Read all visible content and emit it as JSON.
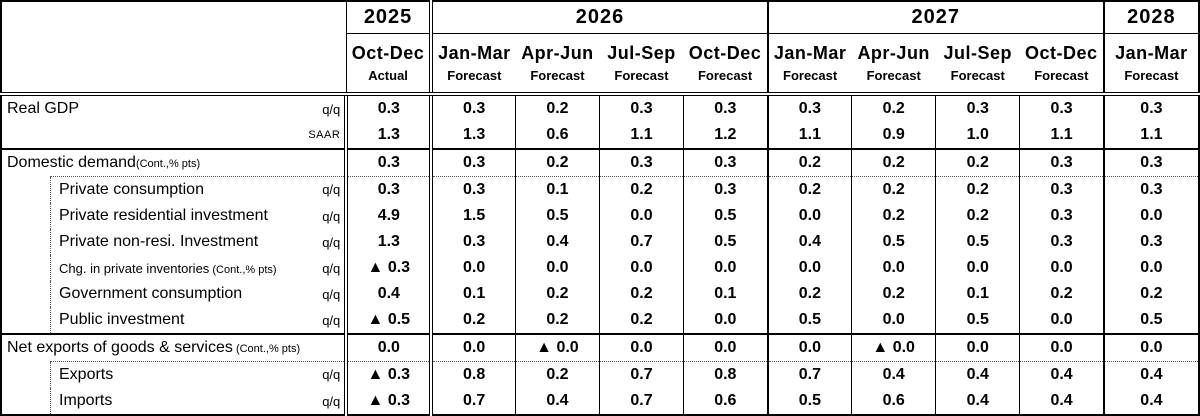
{
  "chart_data": {
    "type": "table",
    "negative_marker": "▲",
    "col_groups": [
      {
        "label": "2025",
        "span": 1
      },
      {
        "label": "2026",
        "span": 4
      },
      {
        "label": "2027",
        "span": 4
      },
      {
        "label": "2028",
        "span": 1
      }
    ],
    "columns": [
      {
        "year": "2025",
        "label": "Oct-Dec",
        "status": "Actual"
      },
      {
        "year": "2026",
        "label": "Jan-Mar",
        "status": "Forecast"
      },
      {
        "year": "2026",
        "label": "Apr-Jun",
        "status": "Forecast"
      },
      {
        "year": "2026",
        "label": "Jul-Sep",
        "status": "Forecast"
      },
      {
        "year": "2026",
        "label": "Oct-Dec",
        "status": "Forecast"
      },
      {
        "year": "2027",
        "label": "Jan-Mar",
        "status": "Forecast"
      },
      {
        "year": "2027",
        "label": "Apr-Jun",
        "status": "Forecast"
      },
      {
        "year": "2027",
        "label": "Jul-Sep",
        "status": "Forecast"
      },
      {
        "year": "2027",
        "label": "Oct-Dec",
        "status": "Forecast"
      },
      {
        "year": "2028",
        "label": "Jan-Mar",
        "status": "Forecast"
      }
    ],
    "rows": [
      {
        "label": "Real GDP",
        "suffix": "",
        "unit": "q/q",
        "style": "main",
        "divider": "",
        "values": [
          "0.3",
          "0.3",
          "0.2",
          "0.3",
          "0.3",
          "0.3",
          "0.2",
          "0.3",
          "0.3",
          "0.3"
        ]
      },
      {
        "label": "",
        "suffix": "",
        "unit": "SAAR",
        "style": "saar",
        "divider": "solid",
        "values": [
          "1.3",
          "1.3",
          "0.6",
          "1.1",
          "1.2",
          "1.1",
          "0.9",
          "1.0",
          "1.1",
          "1.1"
        ]
      },
      {
        "label": "Domestic demand",
        "suffix": "(Cont.,% pts)",
        "unit": "",
        "style": "section",
        "divider": "dotted",
        "values": [
          "0.3",
          "0.3",
          "0.2",
          "0.3",
          "0.3",
          "0.2",
          "0.2",
          "0.2",
          "0.3",
          "0.3"
        ]
      },
      {
        "label": "Private consumption",
        "suffix": "",
        "unit": "q/q",
        "style": "sub",
        "divider": "",
        "values": [
          "0.3",
          "0.3",
          "0.1",
          "0.2",
          "0.3",
          "0.2",
          "0.2",
          "0.2",
          "0.3",
          "0.3"
        ]
      },
      {
        "label": "Private residential investment",
        "suffix": "",
        "unit": "q/q",
        "style": "sub",
        "divider": "",
        "values": [
          "4.9",
          "1.5",
          "0.5",
          "0.0",
          "0.5",
          "0.0",
          "0.2",
          "0.2",
          "0.3",
          "0.0"
        ]
      },
      {
        "label": "Private non-resi. Investment",
        "suffix": "",
        "unit": "q/q",
        "style": "sub",
        "divider": "",
        "values": [
          "1.3",
          "0.3",
          "0.4",
          "0.7",
          "0.5",
          "0.4",
          "0.5",
          "0.5",
          "0.3",
          "0.3"
        ]
      },
      {
        "label": "Chg. in private inventories",
        "suffix": " (Cont.,% pts)",
        "unit": "q/q",
        "style": "sub-small",
        "divider": "",
        "values": [
          "▲ 0.3",
          "0.0",
          "0.0",
          "0.0",
          "0.0",
          "0.0",
          "0.0",
          "0.0",
          "0.0",
          "0.0"
        ]
      },
      {
        "label": "Government consumption",
        "suffix": "",
        "unit": "q/q",
        "style": "sub",
        "divider": "",
        "values": [
          "0.4",
          "0.1",
          "0.2",
          "0.2",
          "0.1",
          "0.2",
          "0.2",
          "0.1",
          "0.2",
          "0.2"
        ]
      },
      {
        "label": "Public investment",
        "suffix": "",
        "unit": "q/q",
        "style": "sub",
        "divider": "solid",
        "values": [
          "▲ 0.5",
          "0.2",
          "0.2",
          "0.2",
          "0.0",
          "0.5",
          "0.0",
          "0.5",
          "0.0",
          "0.5"
        ]
      },
      {
        "label": "Net exports of goods & services",
        "suffix": " (Cont.,% pts)",
        "unit": "",
        "style": "section",
        "divider": "dotted",
        "values": [
          "0.0",
          "0.0",
          "▲ 0.0",
          "0.0",
          "0.0",
          "0.0",
          "▲ 0.0",
          "0.0",
          "0.0",
          "0.0"
        ]
      },
      {
        "label": "Exports",
        "suffix": "",
        "unit": "q/q",
        "style": "sub",
        "divider": "",
        "values": [
          "▲ 0.3",
          "0.8",
          "0.2",
          "0.7",
          "0.8",
          "0.7",
          "0.4",
          "0.4",
          "0.4",
          "0.4"
        ]
      },
      {
        "label": "Imports",
        "suffix": "",
        "unit": "q/q",
        "style": "sub",
        "divider": "",
        "values": [
          "▲ 0.3",
          "0.7",
          "0.4",
          "0.7",
          "0.6",
          "0.5",
          "0.6",
          "0.4",
          "0.4",
          "0.4"
        ]
      }
    ]
  }
}
